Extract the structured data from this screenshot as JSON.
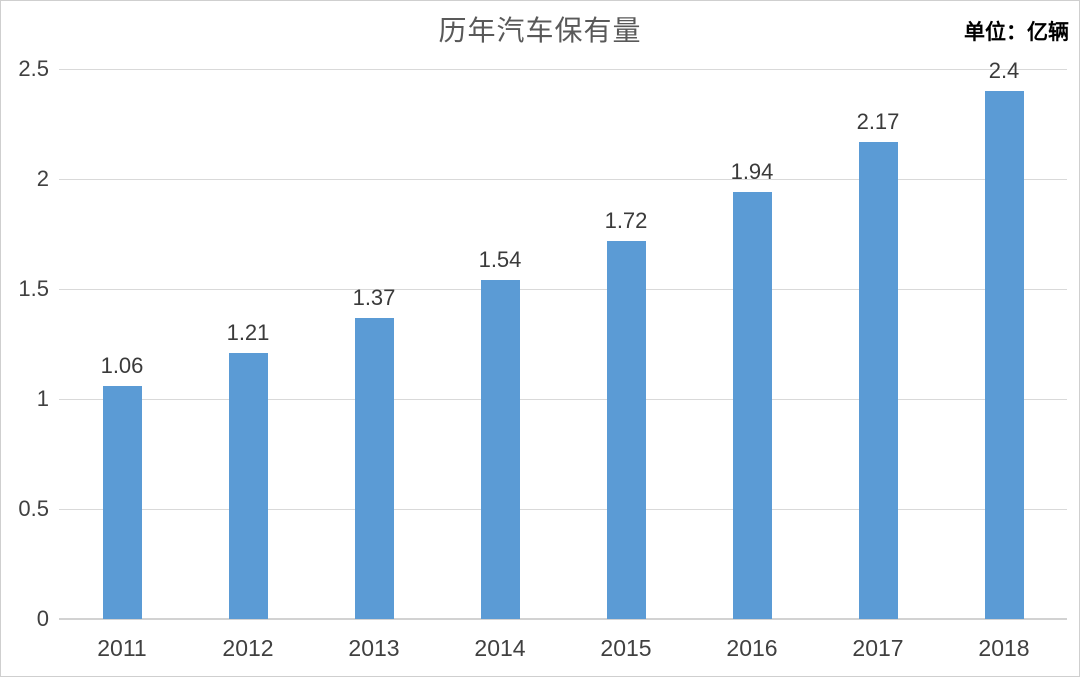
{
  "header": {
    "title": "历年汽车保有量",
    "unit_label": "单位：亿辆"
  },
  "chart_data": {
    "type": "bar",
    "title": "历年汽车保有量",
    "unit": "单位：亿辆",
    "categories": [
      "2011",
      "2012",
      "2013",
      "2014",
      "2015",
      "2016",
      "2017",
      "2018"
    ],
    "values": [
      1.06,
      1.21,
      1.37,
      1.54,
      1.72,
      1.94,
      2.17,
      2.4
    ],
    "data_labels": [
      "1.06",
      "1.21",
      "1.37",
      "1.54",
      "1.72",
      "1.94",
      "2.17",
      "2.4"
    ],
    "xlabel": "",
    "ylabel": "",
    "ylim": [
      0,
      2.5
    ],
    "y_tick_values": [
      0,
      0.5,
      1,
      1.5,
      2,
      2.5
    ],
    "y_tick_labels": [
      "0",
      "0.5",
      "1",
      "1.5",
      "2",
      "2.5"
    ],
    "grid": true,
    "legend": "none",
    "colors": {
      "bar_fill": "#5b9bd5",
      "gridline": "#d9d9d9",
      "axis_line": "#d2d2d2",
      "tick_text": "#404040",
      "data_label_text": "#3a3a3a",
      "title_text": "#595959",
      "unit_text": "#000000"
    }
  }
}
